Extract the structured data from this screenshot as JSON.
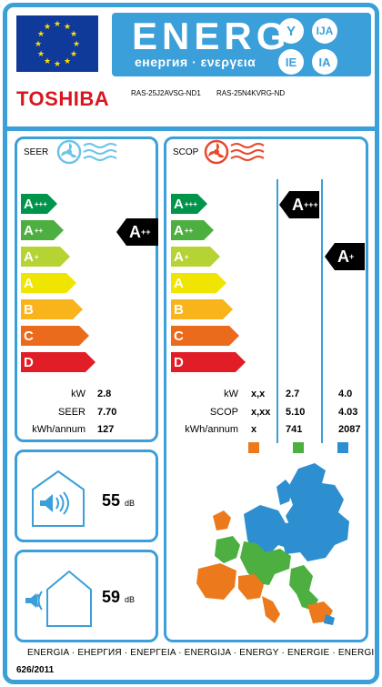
{
  "header": {
    "energ": "ENERG",
    "energ_sub": "енергия · ενεργεια",
    "lang_badges": [
      "Y",
      "IJA",
      "IE",
      "IA"
    ],
    "brand": "TOSHIBA",
    "model_indoor": "RAS-25J2AVSG-ND1",
    "model_outdoor": "RAS-25N4KVRG-ND"
  },
  "colors": {
    "frame": "#3b9fd9",
    "flag": "#0f3a9a",
    "brand": "#d9161f"
  },
  "scale": [
    {
      "letter": "A",
      "sup": "+++",
      "color": "#00954a"
    },
    {
      "letter": "A",
      "sup": "++",
      "color": "#4daf3f"
    },
    {
      "letter": "A",
      "sup": "+",
      "color": "#b6d334"
    },
    {
      "letter": "A",
      "sup": "",
      "color": "#f0e500"
    },
    {
      "letter": "B",
      "sup": "",
      "color": "#f9b31b"
    },
    {
      "letter": "C",
      "sup": "",
      "color": "#ec6a1c"
    },
    {
      "letter": "D",
      "sup": "",
      "color": "#e11e27"
    }
  ],
  "seer": {
    "title": "SEER",
    "icon": "cooling-fan-icon",
    "class_letter": "A",
    "class_sup": "++",
    "rows": [
      {
        "label": "kW",
        "value": "2.8"
      },
      {
        "label": "SEER",
        "value": "7.70"
      },
      {
        "label": "kWh/annum",
        "value": "127"
      }
    ]
  },
  "scop": {
    "title": "SCOP",
    "icon": "heating-fan-icon",
    "class_warm_letter": "A",
    "class_warm_sup": "+++",
    "class_cold_letter": "A",
    "class_cold_sup": "+",
    "rows": [
      {
        "label": "kW",
        "v1": "x,x",
        "v2": "2.7",
        "v3": "4.0"
      },
      {
        "label": "SCOP",
        "v1": "x,xx",
        "v2": "5.10",
        "v3": "4.03"
      },
      {
        "label": "kWh/annum",
        "v1": "x",
        "v2": "741",
        "v3": "2087"
      }
    ],
    "zone_colors": [
      "#ec7a1c",
      "#4daf3f",
      "#2d8fd0"
    ]
  },
  "noise_indoor": {
    "value": "55",
    "unit": "dB",
    "icon": "indoor-speaker-icon"
  },
  "noise_outdoor": {
    "value": "59",
    "unit": "dB",
    "icon": "outdoor-speaker-icon"
  },
  "map_icon": "europe-climate-zones-map",
  "footer": {
    "languages": "ENERGIA · ЕНЕРГИЯ · ΕΝΕΡΓΕΙΑ · ENERGIJA · ENERGY · ENERGIE · ENERGI",
    "regulation": "626/2011"
  }
}
